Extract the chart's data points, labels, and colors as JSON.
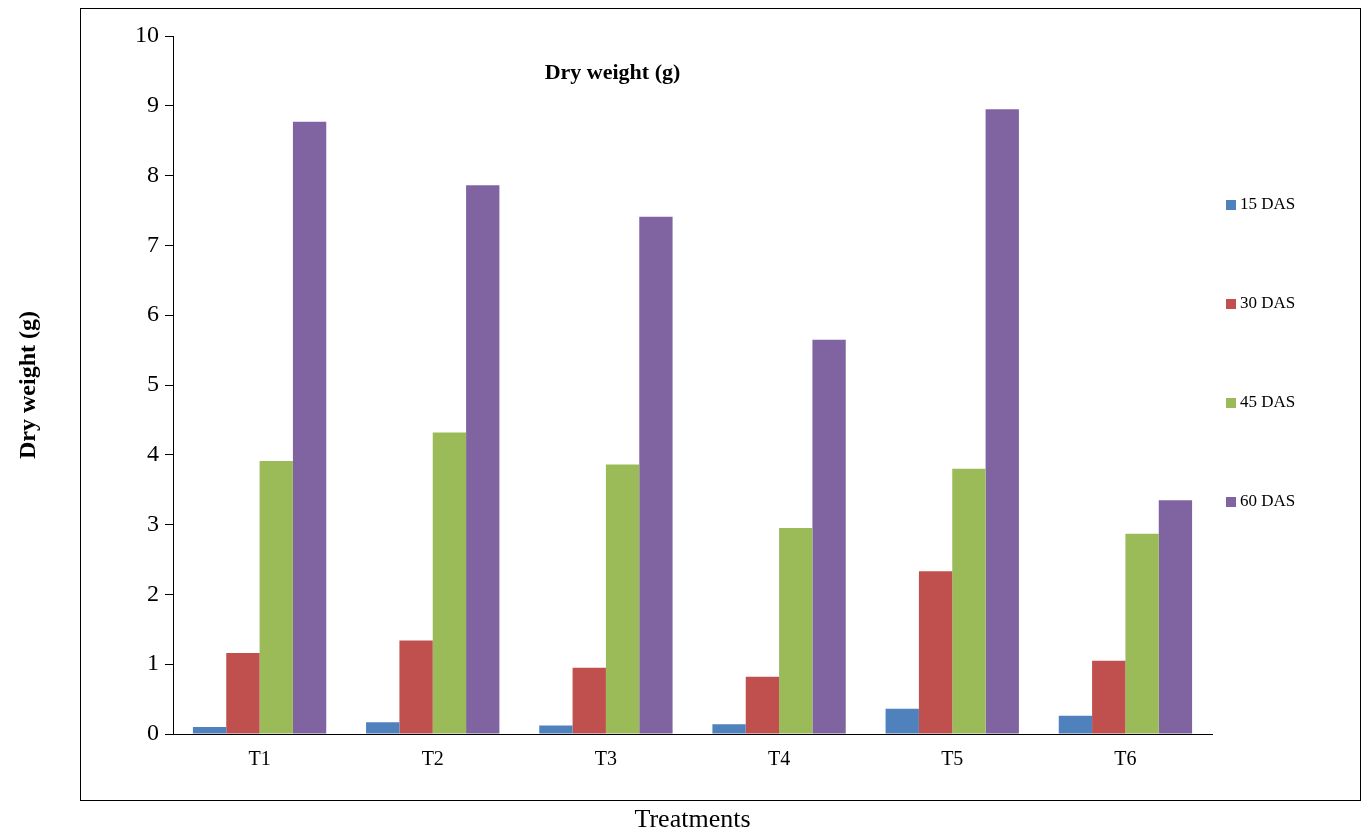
{
  "chart_data": {
    "type": "bar",
    "title": "Dry weight (g)",
    "xlabel": "Treatments",
    "ylabel": "Dry weight (g)",
    "categories": [
      "T1",
      "T2",
      "T3",
      "T4",
      "T5",
      "T6"
    ],
    "series": [
      {
        "name": "15 DAS",
        "color": "#4f81bd",
        "values": [
          0.1,
          0.17,
          0.12,
          0.14,
          0.36,
          0.26
        ]
      },
      {
        "name": "30 DAS",
        "color": "#c0504d",
        "values": [
          1.16,
          1.34,
          0.95,
          0.82,
          2.33,
          1.05
        ]
      },
      {
        "name": "45 DAS",
        "color": "#9bbb59",
        "values": [
          3.91,
          4.32,
          3.86,
          2.95,
          3.8,
          2.87
        ]
      },
      {
        "name": "60 DAS",
        "color": "#8064a2",
        "values": [
          8.77,
          7.86,
          7.41,
          5.65,
          8.95,
          3.35
        ]
      }
    ],
    "ylim": [
      0,
      10
    ],
    "yticks": [
      0,
      1,
      2,
      3,
      4,
      5,
      6,
      7,
      8,
      9,
      10
    ],
    "grid": false,
    "legend": "right"
  }
}
